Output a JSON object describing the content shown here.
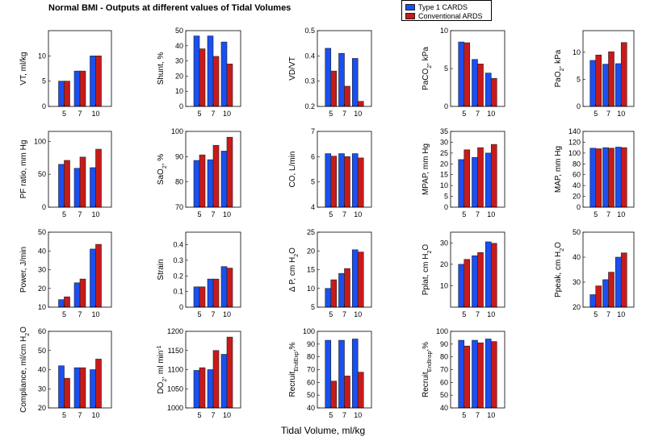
{
  "title": "Normal BMI - Outputs at different values of Tidal Volumes",
  "xlabel": "Tidal Volume, ml/kg",
  "legend": [
    {
      "name": "Type 1 CARDS",
      "color": "#1a4ff0"
    },
    {
      "name": "Conventional ARDS",
      "color": "#c81a1a"
    }
  ],
  "chart_data": [
    {
      "type": "bar",
      "ylabel": "VT, ml/kg",
      "categories": [
        "5",
        "7",
        "10"
      ],
      "ylim": [
        0,
        15
      ],
      "yticks": [
        "0",
        "5",
        "10"
      ],
      "series": [
        {
          "name": "Type 1 CARDS",
          "values": [
            5,
            7,
            10
          ]
        },
        {
          "name": "Conventional ARDS",
          "values": [
            5,
            7,
            10
          ]
        }
      ]
    },
    {
      "type": "bar",
      "ylabel": "Shunt, %",
      "categories": [
        "5",
        "7",
        "10"
      ],
      "ylim": [
        0,
        50
      ],
      "yticks": [
        "0",
        "10",
        "20",
        "30",
        "40",
        "50"
      ],
      "series": [
        {
          "name": "Type 1 CARDS",
          "values": [
            46.5,
            46.5,
            42.5
          ]
        },
        {
          "name": "Conventional ARDS",
          "values": [
            38,
            33,
            28
          ]
        }
      ]
    },
    {
      "type": "bar",
      "ylabel": "VD/VT",
      "categories": [
        "5",
        "7",
        "10"
      ],
      "ylim": [
        0.2,
        0.5
      ],
      "yticks": [
        "0.2",
        "0.3",
        "0.4",
        "0.5"
      ],
      "series": [
        {
          "name": "Type 1 CARDS",
          "values": [
            0.43,
            0.41,
            0.39
          ]
        },
        {
          "name": "Conventional ARDS",
          "values": [
            0.34,
            0.28,
            0.22
          ]
        }
      ]
    },
    {
      "type": "bar",
      "ylabel": "PaCO2, kPa",
      "ylabel_parts": [
        "PaCO",
        "2",
        ", kPa"
      ],
      "categories": [
        "5",
        "7",
        "10"
      ],
      "ylim": [
        0,
        10
      ],
      "yticks": [
        "0",
        "5",
        "10"
      ],
      "series": [
        {
          "name": "Type 1 CARDS",
          "values": [
            8.5,
            6.2,
            4.4
          ]
        },
        {
          "name": "Conventional ARDS",
          "values": [
            8.4,
            5.6,
            3.7
          ]
        }
      ]
    },
    {
      "type": "bar",
      "ylabel": "PaO2, kPa",
      "ylabel_parts": [
        "PaO",
        "2",
        ", kPa"
      ],
      "categories": [
        "5",
        "7",
        "10"
      ],
      "ylim": [
        0,
        14
      ],
      "yticks": [
        "0",
        "5",
        "10"
      ],
      "series": [
        {
          "name": "Type 1 CARDS",
          "values": [
            8.5,
            7.8,
            7.9
          ]
        },
        {
          "name": "Conventional ARDS",
          "values": [
            9.5,
            10.1,
            11.8
          ]
        }
      ]
    },
    {
      "type": "bar",
      "ylabel": "PF ratio, mm Hg",
      "categories": [
        "5",
        "7",
        "10"
      ],
      "ylim": [
        0,
        115
      ],
      "yticks": [
        "0",
        "50",
        "100"
      ],
      "series": [
        {
          "name": "Type 1 CARDS",
          "values": [
            65,
            59,
            60
          ]
        },
        {
          "name": "Conventional ARDS",
          "values": [
            71,
            76,
            88
          ]
        }
      ]
    },
    {
      "type": "bar",
      "ylabel": "SaO2, %",
      "ylabel_parts": [
        "SaO",
        "2",
        ", %"
      ],
      "categories": [
        "5",
        "7",
        "10"
      ],
      "ylim": [
        70,
        100
      ],
      "yticks": [
        "70",
        "80",
        "90",
        "100"
      ],
      "series": [
        {
          "name": "Type 1 CARDS",
          "values": [
            88.5,
            88.8,
            92.2
          ]
        },
        {
          "name": "Conventional ARDS",
          "values": [
            90.7,
            94.5,
            97.7
          ]
        }
      ]
    },
    {
      "type": "bar",
      "ylabel": "CO, L/min",
      "categories": [
        "5",
        "7",
        "10"
      ],
      "ylim": [
        4,
        7
      ],
      "yticks": [
        "4",
        "5",
        "6",
        "7"
      ],
      "series": [
        {
          "name": "Type 1 CARDS",
          "values": [
            6.12,
            6.12,
            6.12
          ]
        },
        {
          "name": "Conventional ARDS",
          "values": [
            6.02,
            6.0,
            5.95
          ]
        }
      ]
    },
    {
      "type": "bar",
      "ylabel": "MPAP, mm Hg",
      "categories": [
        "5",
        "7",
        "10"
      ],
      "ylim": [
        0,
        35
      ],
      "yticks": [
        "0",
        "5",
        "10",
        "15",
        "20",
        "25",
        "30",
        "35"
      ],
      "series": [
        {
          "name": "Type 1 CARDS",
          "values": [
            22,
            23,
            25
          ]
        },
        {
          "name": "Conventional ARDS",
          "values": [
            26.5,
            27.5,
            29
          ]
        }
      ]
    },
    {
      "type": "bar",
      "ylabel": "MAP, mm Hg",
      "categories": [
        "5",
        "7",
        "10"
      ],
      "ylim": [
        0,
        140
      ],
      "yticks": [
        "0",
        "20",
        "40",
        "60",
        "80",
        "100",
        "120",
        "140"
      ],
      "series": [
        {
          "name": "Type 1 CARDS",
          "values": [
            109,
            110,
            111
          ]
        },
        {
          "name": "Conventional ARDS",
          "values": [
            108,
            109,
            110
          ]
        }
      ]
    },
    {
      "type": "bar",
      "ylabel": "Power, J/min",
      "categories": [
        "5",
        "7",
        "10"
      ],
      "ylim": [
        10,
        50
      ],
      "yticks": [
        "10",
        "20",
        "30",
        "40",
        "50"
      ],
      "series": [
        {
          "name": "Type 1 CARDS",
          "values": [
            14,
            23,
            41
          ]
        },
        {
          "name": "Conventional ARDS",
          "values": [
            15.5,
            25,
            43.5
          ]
        }
      ]
    },
    {
      "type": "bar",
      "ylabel": "Strain",
      "categories": [
        "5",
        "7",
        "10"
      ],
      "ylim": [
        0,
        0.48
      ],
      "yticks": [
        "0",
        "0.1",
        "0.2",
        "0.3",
        "0.4"
      ],
      "series": [
        {
          "name": "Type 1 CARDS",
          "values": [
            0.13,
            0.18,
            0.26
          ]
        },
        {
          "name": "Conventional ARDS",
          "values": [
            0.13,
            0.18,
            0.25
          ]
        }
      ]
    },
    {
      "type": "bar",
      "ylabel": "Δ P, cm H2O",
      "ylabel_parts": [
        "Δ P, cm H",
        "2",
        "O"
      ],
      "categories": [
        "5",
        "7",
        "10"
      ],
      "ylim": [
        5,
        25
      ],
      "yticks": [
        "5",
        "10",
        "15",
        "20",
        "25"
      ],
      "series": [
        {
          "name": "Type 1 CARDS",
          "values": [
            10,
            14,
            20.3
          ]
        },
        {
          "name": "Conventional ARDS",
          "values": [
            12.3,
            15.3,
            19.7
          ]
        }
      ]
    },
    {
      "type": "bar",
      "ylabel": "Pplat, cm H2O",
      "ylabel_parts": [
        "Pplat, cm H",
        "2",
        "O"
      ],
      "categories": [
        "5",
        "7",
        "10"
      ],
      "ylim": [
        0,
        35
      ],
      "yticks": [
        "10",
        "20",
        "30"
      ],
      "series": [
        {
          "name": "Type 1 CARDS",
          "values": [
            20,
            24,
            30.5
          ]
        },
        {
          "name": "Conventional ARDS",
          "values": [
            22.3,
            25.5,
            29.8
          ]
        }
      ]
    },
    {
      "type": "bar",
      "ylabel": "Ppeak, cm H2O",
      "ylabel_parts": [
        "Ppeak, cm H",
        "2",
        "O"
      ],
      "categories": [
        "5",
        "7",
        "10"
      ],
      "ylim": [
        20,
        50
      ],
      "yticks": [
        "20",
        "30",
        "40",
        "50"
      ],
      "series": [
        {
          "name": "Type 1 CARDS",
          "values": [
            25,
            31,
            40
          ]
        },
        {
          "name": "Conventional ARDS",
          "values": [
            28.5,
            34,
            41.7
          ]
        }
      ]
    },
    {
      "type": "bar",
      "ylabel": "Compliance, ml/cm H2O",
      "ylabel_parts": [
        "Compliance, ml/cm H",
        "2",
        "O"
      ],
      "categories": [
        "5",
        "7",
        "10"
      ],
      "ylim": [
        20,
        60
      ],
      "yticks": [
        "20",
        "30",
        "40",
        "50",
        "60"
      ],
      "series": [
        {
          "name": "Type 1 CARDS",
          "values": [
            42,
            41,
            40
          ]
        },
        {
          "name": "Conventional ARDS",
          "values": [
            35.5,
            41,
            45.5
          ]
        }
      ]
    },
    {
      "type": "bar",
      "ylabel": "DO2, ml min-1",
      "ylabel_parts": [
        "DO",
        "2",
        ", ml min",
        "-1"
      ],
      "categories": [
        "5",
        "7",
        "10"
      ],
      "ylim": [
        1000,
        1200
      ],
      "yticks": [
        "1000",
        "1050",
        "1100",
        "1150",
        "1200"
      ],
      "series": [
        {
          "name": "Type 1 CARDS",
          "values": [
            1098,
            1100,
            1140
          ]
        },
        {
          "name": "Conventional ARDS",
          "values": [
            1105,
            1150,
            1185
          ]
        }
      ]
    },
    {
      "type": "bar",
      "ylabel": "RecruitEndExp, %",
      "ylabel_parts": [
        "Recruit",
        "EndExp",
        ",%"
      ],
      "categories": [
        "5",
        "7",
        "10"
      ],
      "ylim": [
        40,
        100
      ],
      "yticks": [
        "40",
        "50",
        "60",
        "70",
        "80",
        "90",
        "100"
      ],
      "series": [
        {
          "name": "Type 1 CARDS",
          "values": [
            93,
            93,
            94
          ]
        },
        {
          "name": "Conventional ARDS",
          "values": [
            61,
            65,
            68
          ]
        }
      ]
    },
    {
      "type": "bar",
      "ylabel": "RecruitEndInsp, %",
      "ylabel_parts": [
        "Recruit",
        "EndInsp",
        ",%"
      ],
      "categories": [
        "5",
        "7",
        "10"
      ],
      "ylim": [
        40,
        100
      ],
      "yticks": [
        "40",
        "50",
        "60",
        "70",
        "80",
        "90",
        "100"
      ],
      "series": [
        {
          "name": "Type 1 CARDS",
          "values": [
            93,
            93,
            94
          ]
        },
        {
          "name": "Conventional ARDS",
          "values": [
            88.5,
            91,
            92
          ]
        }
      ]
    }
  ]
}
